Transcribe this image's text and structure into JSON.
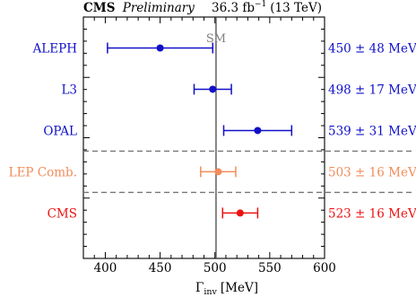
{
  "header": {
    "experiment": "CMS",
    "status": "Preliminary",
    "lumi": "36.3 fb",
    "lumi_exp": "−1",
    "energy": "(13 TeV)"
  },
  "chart_data": {
    "type": "scatter",
    "title": "",
    "xlabel_main": "Γ",
    "xlabel_sub": "inv",
    "xlabel_unit": "[MeV]",
    "xlim": [
      380,
      600
    ],
    "xticks": [
      400,
      450,
      500,
      550,
      600
    ],
    "reference": {
      "label": "SM",
      "x": 501,
      "color": "#808080"
    },
    "points": [
      {
        "name": "ALEPH",
        "value": 450,
        "err": 48,
        "label": "450 ± 48 MeV",
        "color": "#1010c8"
      },
      {
        "name": "L3",
        "value": 498,
        "err": 17,
        "label": "498 ± 17 MeV",
        "color": "#1010c8"
      },
      {
        "name": "OPAL",
        "value": 539,
        "err": 31,
        "label": "539 ± 31 MeV",
        "color": "#1010c8"
      },
      {
        "name": "LEP Comb.",
        "value": 503,
        "err": 16,
        "label": "503 ± 16 MeV",
        "color": "#f28c5a"
      },
      {
        "name": "CMS",
        "value": 523,
        "err": 16,
        "label": "523 ± 16 MeV",
        "color": "#ee1111"
      }
    ],
    "separators_after": [
      2,
      3
    ],
    "grid": false
  }
}
